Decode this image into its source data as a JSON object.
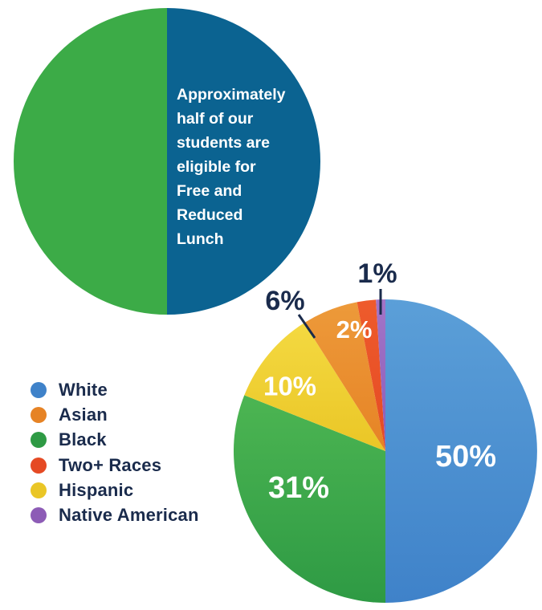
{
  "lunch_chart": {
    "caption": "Approximately\nhalf of our\nstudents are\neligible for\nFree and\nReduced\nLunch",
    "halves": [
      {
        "name": "eligible",
        "color": "#0b6391"
      },
      {
        "name": "not-eligible",
        "color": "#3cab47"
      }
    ]
  },
  "chart_data": [
    {
      "type": "pie",
      "title": "",
      "slices": [
        {
          "name": "White",
          "value": 50,
          "label": "50%",
          "color": "#3f82c9",
          "color_light": "#5b9fd8"
        },
        {
          "name": "Black",
          "value": 31,
          "label": "31%",
          "color": "#2e9a44",
          "color_light": "#4cb552"
        },
        {
          "name": "Hispanic",
          "value": 10,
          "label": "10%",
          "color": "#eac626",
          "color_light": "#f4d941"
        },
        {
          "name": "Asian",
          "value": 6,
          "label": "6%",
          "color": "#e68325",
          "color_light": "#ed9a3a"
        },
        {
          "name": "Two+ Races",
          "value": 2,
          "label": "2%",
          "color": "#e54a24",
          "color_light": "#ee5b2c"
        },
        {
          "name": "Native American",
          "value": 1,
          "label": "1%",
          "color": "#8d5cb6",
          "color_light": "#a275c8"
        }
      ],
      "legend": {
        "placement": "left",
        "items": [
          {
            "label": "White",
            "color": "#3f82c9"
          },
          {
            "label": "Asian",
            "color": "#e68325"
          },
          {
            "label": "Black",
            "color": "#2e9a44"
          },
          {
            "label": "Two+ Races",
            "color": "#e54a24"
          },
          {
            "label": "Hispanic",
            "color": "#eac626"
          },
          {
            "label": "Native American",
            "color": "#8d5cb6"
          }
        ]
      }
    }
  ]
}
